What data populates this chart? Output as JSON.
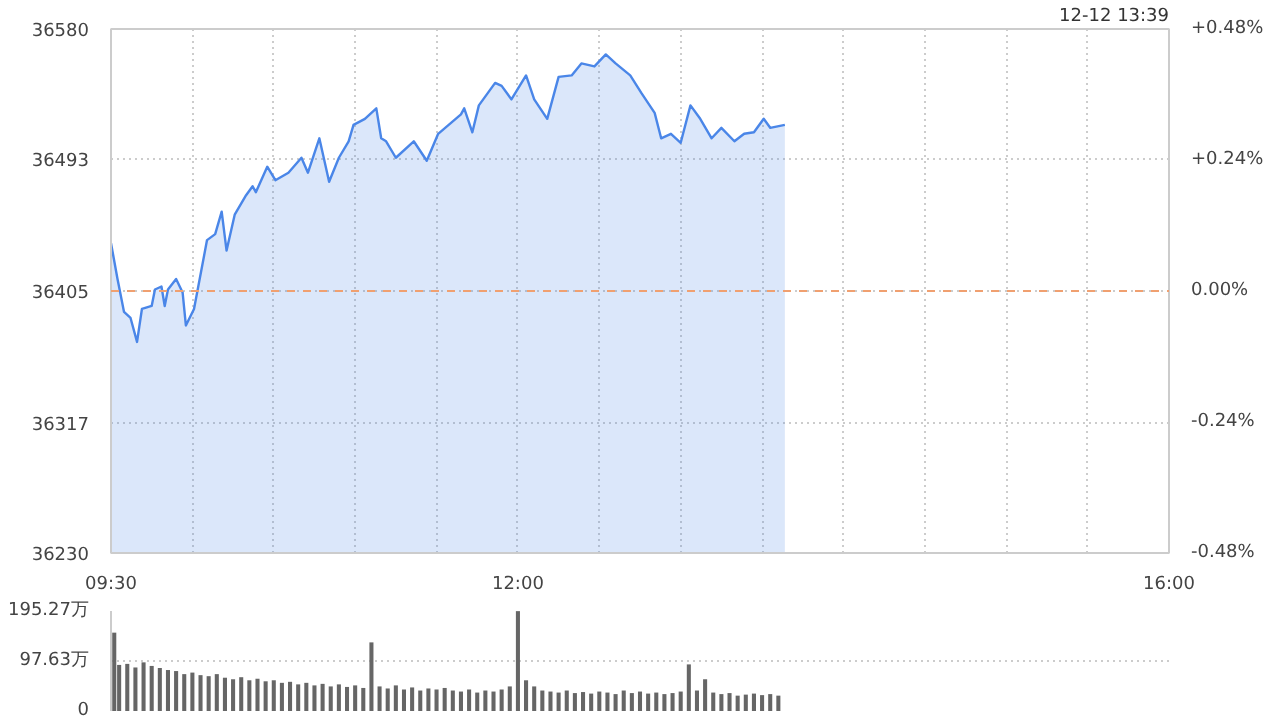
{
  "chart_data": [
    {
      "type": "area",
      "annotations": [
        "12-12 13:39"
      ],
      "x": [
        9.5,
        9.54,
        9.58,
        9.62,
        9.66,
        9.69,
        9.75,
        9.77,
        9.81,
        9.83,
        9.85,
        9.9,
        9.94,
        9.96,
        10.01,
        10.09,
        10.14,
        10.18,
        10.21,
        10.26,
        10.33,
        10.37,
        10.39,
        10.46,
        10.51,
        10.59,
        10.67,
        10.71,
        10.78,
        10.84,
        10.9,
        10.96,
        10.99,
        11.06,
        11.13,
        11.16,
        11.19,
        11.25,
        11.36,
        11.44,
        11.51,
        11.65,
        11.67,
        11.72,
        11.76,
        11.86,
        11.9,
        11.96,
        12.05,
        12.1,
        12.18,
        12.25,
        12.33,
        12.39,
        12.47,
        12.54,
        12.6,
        12.69,
        12.76,
        12.84,
        12.88,
        12.94,
        13.0,
        13.06,
        13.12,
        13.19,
        13.25,
        13.33,
        13.39,
        13.45,
        13.51,
        13.55,
        13.64
      ],
      "series": [
        {
          "color": "#4a86e8",
          "values": [
            36437,
            36413,
            36391,
            36387,
            36371,
            36393,
            36395,
            36406,
            36408,
            36395,
            36406,
            36413,
            36404,
            36382,
            36393,
            36439,
            36443,
            36458,
            36432,
            36456,
            36469,
            36475,
            36471,
            36488,
            36479,
            36484,
            36494,
            36484,
            36507,
            36478,
            36494,
            36505,
            36516,
            36520,
            36527,
            36507,
            36505,
            36494,
            36505,
            36492,
            36510,
            36523,
            36527,
            36511,
            36529,
            36544,
            36542,
            36533,
            36549,
            36533,
            36520,
            36548,
            36549,
            36557,
            36555,
            36563,
            36557,
            36549,
            36537,
            36524,
            36507,
            36510,
            36504,
            36529,
            36520,
            36507,
            36514,
            36505,
            36510,
            36511,
            36520,
            36514,
            36516
          ]
        }
      ],
      "xlim": [
        9.5,
        16
      ],
      "xticks": [
        {
          "value": 9.5,
          "label": "09:30"
        },
        {
          "value": 10,
          "label": null
        },
        {
          "value": 10.5,
          "label": null
        },
        {
          "value": 11,
          "label": null
        },
        {
          "value": 11.5,
          "label": null
        },
        {
          "value": 12,
          "label": "12:00"
        },
        {
          "value": 12.5,
          "label": null
        },
        {
          "value": 13,
          "label": null
        },
        {
          "value": 13.5,
          "label": null
        },
        {
          "value": 14,
          "label": null
        },
        {
          "value": 14.5,
          "label": null
        },
        {
          "value": 15,
          "label": null
        },
        {
          "value": 15.5,
          "label": null
        },
        {
          "value": 16,
          "label": "16:00"
        }
      ],
      "ylim": [
        36230,
        36580
      ],
      "yticks": [
        36230,
        36317,
        36405,
        36493,
        36580
      ],
      "y2lim": [
        -0.48,
        0.48
      ],
      "y2ticks": [
        {
          "value": -0.48,
          "label": "-0.48%"
        },
        {
          "value": -0.24,
          "label": "-0.24%"
        },
        {
          "value": 0,
          "label": "0.00%"
        },
        {
          "value": 0.24,
          "label": "+0.24%"
        },
        {
          "value": 0.48,
          "label": "+0.48%"
        }
      ],
      "ref_lines": [
        {
          "axis": "y",
          "value": 36405,
          "color": "#f0a070",
          "line_style": "dashed"
        }
      ],
      "grid": true
    },
    {
      "type": "bar",
      "color": "#666666",
      "tick_labels": "y",
      "grid": "y",
      "x": [
        9.52,
        9.55,
        9.6,
        9.65,
        9.7,
        9.75,
        9.8,
        9.85,
        9.9,
        9.95,
        10.0,
        10.05,
        10.1,
        10.15,
        10.2,
        10.25,
        10.3,
        10.35,
        10.4,
        10.45,
        10.5,
        10.55,
        10.6,
        10.65,
        10.7,
        10.75,
        10.8,
        10.85,
        10.9,
        10.95,
        11.0,
        11.05,
        11.1,
        11.15,
        11.2,
        11.25,
        11.3,
        11.35,
        11.4,
        11.45,
        11.5,
        11.55,
        11.6,
        11.65,
        11.7,
        11.75,
        11.8,
        11.85,
        11.9,
        11.95,
        12.0,
        12.05,
        12.1,
        12.15,
        12.2,
        12.25,
        12.3,
        12.35,
        12.4,
        12.45,
        12.5,
        12.55,
        12.6,
        12.65,
        12.7,
        12.75,
        12.8,
        12.85,
        12.9,
        12.95,
        13.0,
        13.05,
        13.1,
        13.15,
        13.2,
        13.25,
        13.3,
        13.35,
        13.4,
        13.45,
        13.5,
        13.55,
        13.6
      ],
      "values": [
        153,
        90,
        92,
        85,
        95,
        88,
        84,
        80,
        78,
        72,
        75,
        70,
        68,
        72,
        65,
        62,
        66,
        60,
        63,
        58,
        60,
        55,
        57,
        52,
        55,
        50,
        53,
        48,
        52,
        47,
        50,
        45,
        134,
        48,
        44,
        50,
        42,
        46,
        40,
        44,
        42,
        45,
        40,
        38,
        42,
        36,
        40,
        38,
        42,
        48,
        195,
        60,
        48,
        40,
        38,
        36,
        40,
        35,
        37,
        34,
        38,
        36,
        33,
        40,
        35,
        38,
        34,
        36,
        33,
        35,
        38,
        91,
        40,
        62,
        36,
        33,
        35,
        30,
        32,
        34,
        31,
        33,
        30
      ],
      "xlim": [
        9.5,
        16
      ],
      "ylim": [
        0,
        195.27
      ],
      "yticks": [
        0,
        {
          "value": 97.63,
          "label": "97.63万"
        },
        {
          "value": 195.27,
          "label": "195.27万"
        }
      ]
    }
  ]
}
